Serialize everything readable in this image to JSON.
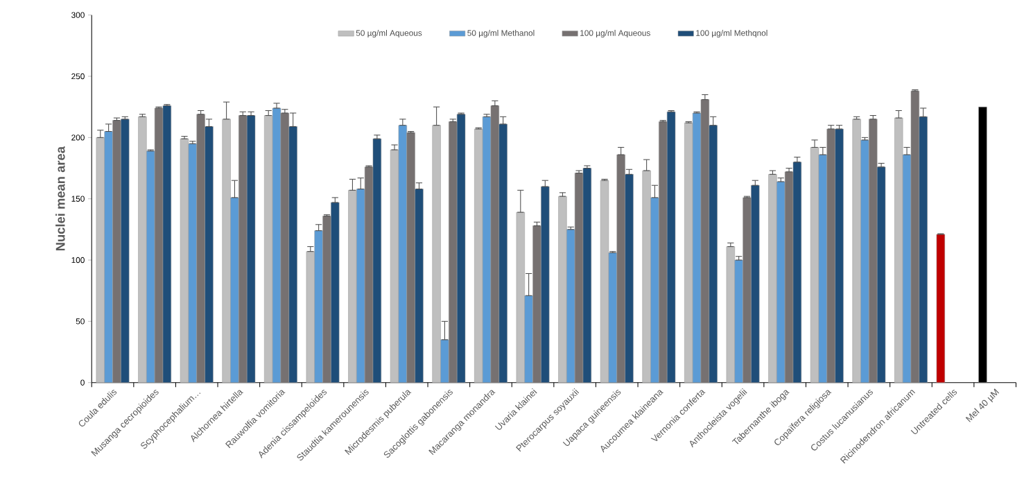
{
  "chart_data": {
    "type": "bar",
    "ylabel": "Nuclei mean area",
    "categories": [
      "Coula edulis",
      "Musanga cecropioides",
      "Scyphocephalium…",
      "Alchornea  hirtella",
      "Rauwolfia vomitoria",
      "Adenia cissampeloides",
      "Staudtia kamerounensis",
      "Microdesmis puberula",
      "Sacoglottis gabonensis",
      "Macaranga monandra",
      "Uvaria klainei",
      "Pterocarpus soyauxii",
      "Uapaca guineensis",
      "Aucoumea klaineana",
      "Vernonia conferta",
      "Anthocleista vogelii",
      "Tabernanthe iboga",
      "Copaïfera  religiosa",
      "Costus lucanusianus",
      "Ricinodendron africanum",
      "Untreated cells",
      "Mel 40 µM"
    ],
    "series": [
      {
        "name": "50 µg/ml Aqueous",
        "color": "#bfbfbf",
        "colors": [
          "#bfbfbf",
          "#bfbfbf",
          "#bfbfbf",
          "#bfbfbf",
          "#bfbfbf",
          "#bfbfbf",
          "#bfbfbf",
          "#bfbfbf",
          "#bfbfbf",
          "#bfbfbf",
          "#bfbfbf",
          "#bfbfbf",
          "#bfbfbf",
          "#bfbfbf",
          "#bfbfbf",
          "#bfbfbf",
          "#bfbfbf",
          "#bfbfbf",
          "#bfbfbf",
          "#bfbfbf",
          "#c00000",
          "#000000"
        ],
        "values": [
          200,
          217,
          199,
          215,
          218,
          107,
          157,
          190,
          210,
          207,
          139,
          152,
          165,
          173,
          212,
          111,
          170,
          192,
          215,
          216,
          121,
          225
        ],
        "errors": [
          [
            200,
            206
          ],
          [
            217,
            219
          ],
          [
            199,
            201
          ],
          [
            215,
            229
          ],
          [
            218,
            222
          ],
          [
            107,
            111
          ],
          [
            157,
            166
          ],
          [
            190,
            194
          ],
          [
            210,
            225
          ],
          [
            207,
            208
          ],
          [
            139,
            157
          ],
          [
            152,
            155
          ],
          [
            165,
            166
          ],
          [
            173,
            182
          ],
          [
            212,
            213
          ],
          [
            111,
            114
          ],
          [
            170,
            173
          ],
          [
            192,
            198
          ],
          [
            215,
            217
          ],
          [
            216,
            222
          ],
          [
            121,
            121.5
          ],
          null
        ]
      },
      {
        "name": "50 µg/ml Methanol",
        "color": "#5b9bd5",
        "values": [
          205,
          189,
          195,
          151,
          224,
          124,
          158,
          210,
          35,
          217,
          71,
          125,
          106,
          151,
          220,
          100,
          164,
          186,
          198,
          186,
          null,
          null
        ],
        "errors": [
          [
            205,
            211
          ],
          [
            189,
            190
          ],
          [
            195,
            197
          ],
          [
            151,
            165
          ],
          [
            224,
            228
          ],
          [
            124,
            129
          ],
          [
            158,
            167
          ],
          [
            210,
            215
          ],
          [
            35,
            50
          ],
          [
            217,
            219
          ],
          [
            71,
            89
          ],
          [
            125,
            127
          ],
          [
            106,
            107
          ],
          [
            151,
            161
          ],
          [
            220,
            221
          ],
          [
            100,
            103
          ],
          [
            164,
            167
          ],
          [
            186,
            192
          ],
          [
            198,
            200
          ],
          [
            186,
            192
          ],
          null,
          null
        ]
      },
      {
        "name": "100 µg/ml Aqueous",
        "color": "#767171",
        "values": [
          214,
          224,
          219,
          218,
          220,
          136,
          176,
          204,
          213,
          226,
          128,
          171,
          186,
          213,
          231,
          151,
          172,
          207,
          215,
          238,
          null,
          null
        ],
        "errors": [
          [
            214,
            216
          ],
          [
            224,
            225
          ],
          [
            219,
            222
          ],
          [
            218,
            221
          ],
          [
            220,
            223
          ],
          [
            136,
            137
          ],
          [
            176,
            177
          ],
          [
            204,
            205
          ],
          [
            213,
            215
          ],
          [
            226,
            230
          ],
          [
            128,
            131
          ],
          [
            171,
            173
          ],
          [
            186,
            192
          ],
          [
            213,
            214
          ],
          [
            231,
            235
          ],
          [
            151,
            152
          ],
          [
            172,
            175
          ],
          [
            207,
            210
          ],
          [
            215,
            218
          ],
          [
            238,
            239
          ],
          null,
          null
        ]
      },
      {
        "name": "100 µg/ml Methqnol",
        "color": "#1f4e79",
        "values": [
          215,
          226,
          209,
          218,
          209,
          147,
          199,
          158,
          219,
          211,
          160,
          175,
          170,
          221,
          210,
          161,
          180,
          207,
          176,
          217,
          null,
          null
        ],
        "errors": [
          [
            215,
            217
          ],
          [
            226,
            227
          ],
          [
            209,
            215
          ],
          [
            218,
            221
          ],
          [
            209,
            220
          ],
          [
            147,
            151
          ],
          [
            199,
            202
          ],
          [
            158,
            163
          ],
          [
            219,
            220
          ],
          [
            211,
            217
          ],
          [
            160,
            165
          ],
          [
            175,
            177
          ],
          [
            170,
            174
          ],
          [
            221,
            222
          ],
          [
            210,
            217
          ],
          [
            161,
            165
          ],
          [
            180,
            184
          ],
          [
            207,
            210
          ],
          [
            176,
            179
          ],
          [
            217,
            224
          ],
          null,
          null
        ]
      }
    ],
    "ylim": [
      0,
      300
    ],
    "yticks": [
      0,
      50,
      100,
      150,
      200,
      250,
      300
    ],
    "legend": "top",
    "grid": false
  }
}
